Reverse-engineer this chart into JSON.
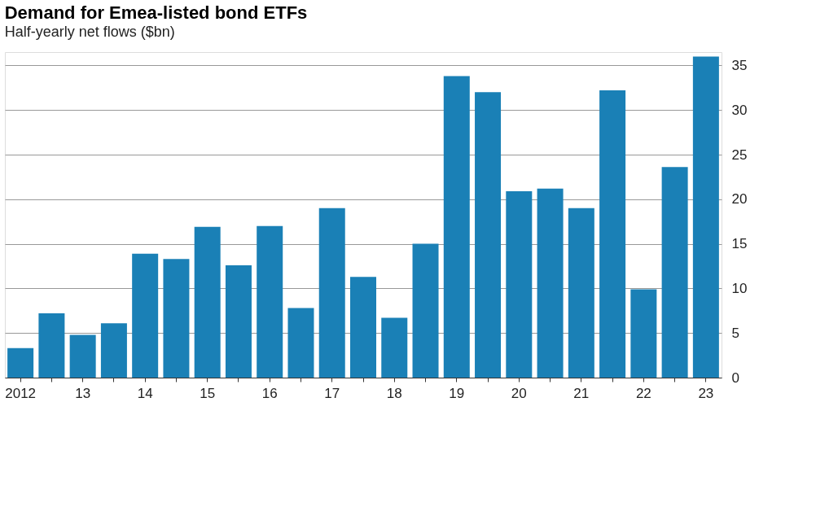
{
  "chart_data": {
    "type": "bar",
    "title": "Demand for Emea-listed bond ETFs",
    "subtitle": "Half-yearly net flows ($bn)",
    "categories": [
      "2012",
      null,
      "13",
      null,
      "14",
      null,
      "15",
      null,
      "16",
      null,
      "17",
      null,
      "18",
      null,
      "19",
      null,
      "20",
      null,
      "21",
      null,
      "22",
      null,
      "23"
    ],
    "values": [
      3.3,
      7.2,
      4.8,
      6.1,
      13.9,
      13.3,
      16.9,
      12.6,
      17.0,
      7.8,
      19.0,
      11.3,
      6.7,
      15.0,
      33.8,
      32.0,
      20.9,
      21.2,
      19.0,
      32.2,
      9.9,
      23.6,
      36.0
    ],
    "color": "#1a80b6",
    "ylim": [
      0,
      36.5
    ],
    "yticks": [
      0,
      5,
      10,
      15,
      20,
      25,
      30,
      35
    ],
    "grid": "y"
  }
}
